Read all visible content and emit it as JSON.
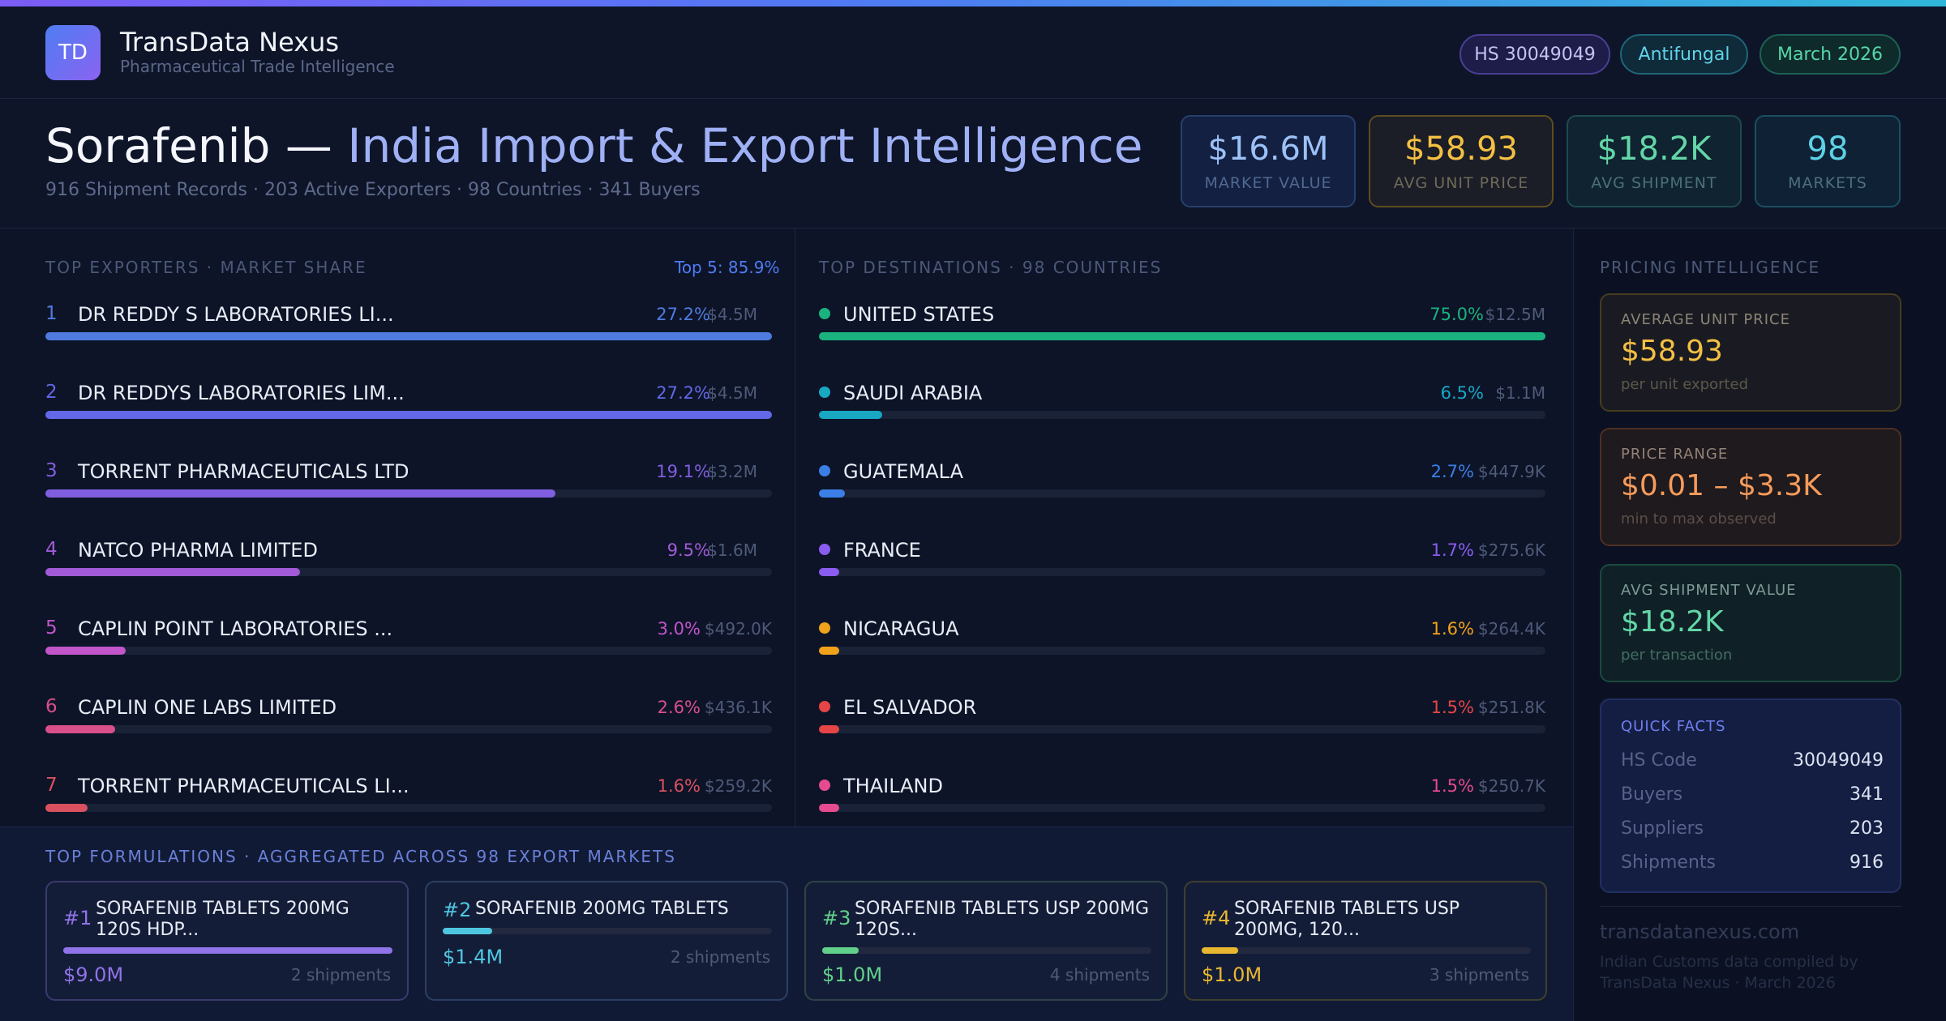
{
  "brand": {
    "logo": "TD",
    "name": "TransData Nexus",
    "subtitle": "Pharmaceutical Trade Intelligence"
  },
  "header_tags": {
    "hs": "HS 30049049",
    "category": "Antifungal",
    "date": "March 2026"
  },
  "title": {
    "part1": "Sorafenib — ",
    "part2": "India Import & Export Intelligence",
    "subtitle": "916 Shipment Records · 203 Active Exporters · 98 Countries · 341 Buyers"
  },
  "kpis": [
    {
      "value": "$16.6M",
      "label": "MARKET VALUE"
    },
    {
      "value": "$58.93",
      "label": "AVG UNIT PRICE"
    },
    {
      "value": "$18.2K",
      "label": "AVG SHIPMENT"
    },
    {
      "value": "98",
      "label": "MARKETS"
    }
  ],
  "exporters": {
    "title": "TOP EXPORTERS · MARKET SHARE",
    "top5": "Top 5: 85.9%",
    "rows": [
      {
        "rank": "1",
        "name": "DR REDDY S LABORATORIES LI...",
        "pct": "27.2%",
        "amount": "$4.5M",
        "share": 100,
        "color": "#4f7be0"
      },
      {
        "rank": "2",
        "name": "DR REDDYS LABORATORIES LIM...",
        "pct": "27.2%",
        "amount": "$4.5M",
        "share": 100,
        "color": "#6268e6"
      },
      {
        "rank": "3",
        "name": "TORRENT PHARMACEUTICALS LTD",
        "pct": "19.1%",
        "amount": "$3.2M",
        "share": 70.2,
        "color": "#7f5fe0"
      },
      {
        "rank": "4",
        "name": "NATCO PHARMA LIMITED",
        "pct": "9.5%",
        "amount": "$1.6M",
        "share": 35,
        "color": "#a25ad6"
      },
      {
        "rank": "5",
        "name": "CAPLIN POINT LABORATORIES ...",
        "pct": "3.0%",
        "amount": "$492.0K",
        "share": 11,
        "color": "#c255c9"
      },
      {
        "rank": "6",
        "name": "CAPLIN ONE LABS LIMITED",
        "pct": "2.6%",
        "amount": "$436.1K",
        "share": 9.6,
        "color": "#d94f8a"
      },
      {
        "rank": "7",
        "name": "TORRENT PHARMACEUTICALS LI...",
        "pct": "1.6%",
        "amount": "$259.2K",
        "share": 5.8,
        "color": "#d9505e"
      }
    ]
  },
  "destinations": {
    "title": "TOP DESTINATIONS · 98 COUNTRIES",
    "rows": [
      {
        "name": "UNITED STATES",
        "pct": "75.0%",
        "amount": "$12.5M",
        "share": 100,
        "color": "#1ab37f"
      },
      {
        "name": "SAUDI ARABIA",
        "pct": "6.5%",
        "amount": "$1.1M",
        "share": 8.7,
        "color": "#19a8c4"
      },
      {
        "name": "GUATEMALA",
        "pct": "2.7%",
        "amount": "$447.9K",
        "share": 3.6,
        "color": "#3b7fe6"
      },
      {
        "name": "FRANCE",
        "pct": "1.7%",
        "amount": "$275.6K",
        "share": 2.8,
        "color": "#8b5cf0"
      },
      {
        "name": "NICARAGUA",
        "pct": "1.6%",
        "amount": "$264.4K",
        "share": 2.8,
        "color": "#f0a21a"
      },
      {
        "name": "EL SALVADOR",
        "pct": "1.5%",
        "amount": "$251.8K",
        "share": 2.8,
        "color": "#e64545"
      },
      {
        "name": "THAILAND",
        "pct": "1.5%",
        "amount": "$250.7K",
        "share": 2.8,
        "color": "#e64a8f"
      }
    ]
  },
  "pricing": {
    "title": "PRICING INTELLIGENCE",
    "cards": [
      {
        "label": "AVERAGE UNIT PRICE",
        "value": "$58.93",
        "sub": "per unit exported"
      },
      {
        "label": "PRICE RANGE",
        "value": "$0.01 – $3.3K",
        "sub": "min to max observed"
      },
      {
        "label": "AVG SHIPMENT VALUE",
        "value": "$18.2K",
        "sub": "per transaction"
      }
    ],
    "quick_facts": {
      "title": "QUICK FACTS",
      "rows": [
        {
          "key": "HS Code",
          "value": "30049049"
        },
        {
          "key": "Buyers",
          "value": "341"
        },
        {
          "key": "Suppliers",
          "value": "203"
        },
        {
          "key": "Shipments",
          "value": "916"
        }
      ]
    },
    "site": "transdatanexus.com",
    "footnote": "Indian Customs data compiled by TransData Nexus · March 2026"
  },
  "formulations": {
    "title": "TOP FORMULATIONS · AGGREGATED ACROSS 98 EXPORT MARKETS",
    "cards": [
      {
        "rank": "#1",
        "name": "SORAFENIB TABLETS 200MG 120S HDP...",
        "value": "$9.0M",
        "shipments": "2 shipments",
        "share": 100,
        "color": "#8f73e8"
      },
      {
        "rank": "#2",
        "name": "SORAFENIB 200MG TABLETS",
        "value": "$1.4M",
        "shipments": "2 shipments",
        "share": 15,
        "color": "#4fc6e0"
      },
      {
        "rank": "#3",
        "name": "SORAFENIB TABLETS USP 200MG 120S...",
        "value": "$1.0M",
        "shipments": "4 shipments",
        "share": 11,
        "color": "#61d08a"
      },
      {
        "rank": "#4",
        "name": "SORAFENIB TABLETS USP 200MG, 120...",
        "value": "$1.0M",
        "shipments": "3 shipments",
        "share": 11,
        "color": "#e9b630"
      }
    ]
  }
}
